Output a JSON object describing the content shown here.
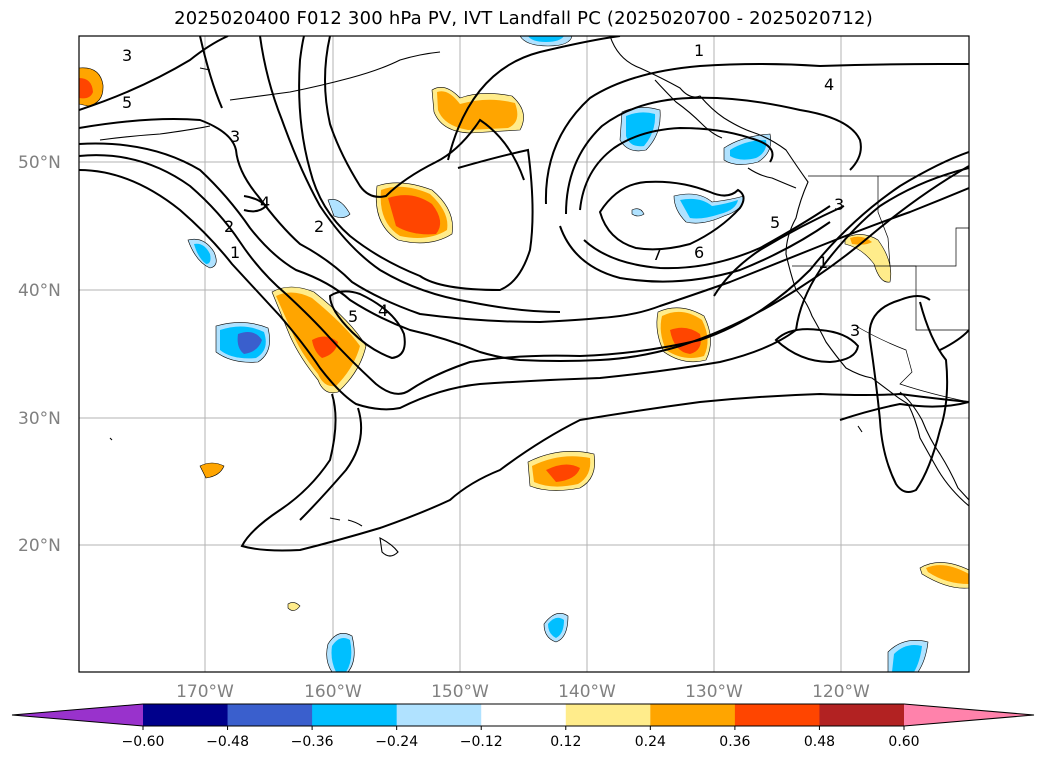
{
  "title": "2025020400 F012 300 hPa PV, IVT Landfall PC (2025020700 - 2025020712)",
  "lat_labels": [
    "50°N",
    "40°N",
    "30°N",
    "20°N"
  ],
  "lon_labels": [
    "170°W",
    "160°W",
    "150°W",
    "140°W",
    "130°W",
    "120°W"
  ],
  "colorbar": {
    "ticks": [
      "−0.60",
      "−0.48",
      "−0.36",
      "−0.24",
      "−0.12",
      "0.12",
      "0.24",
      "0.36",
      "0.48",
      "0.60"
    ],
    "colors": [
      "#9932cc",
      "#00008b",
      "#3a5fcd",
      "#00bfff",
      "#b0e2ff",
      "#ffffff",
      "#ffec8b",
      "#ffa500",
      "#ff4500",
      "#b22222",
      "#ff82ab"
    ]
  },
  "contour_labels": [
    "3",
    "5",
    "3",
    "4",
    "2",
    "1",
    "2",
    "5",
    "4",
    "1",
    "4",
    "7",
    "6",
    "5",
    "3",
    "1",
    "3"
  ]
}
